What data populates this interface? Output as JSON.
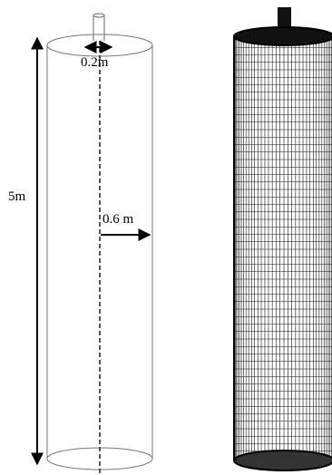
{
  "figure": {
    "colors": {
      "ink": "#000000",
      "outline": "#666666",
      "mesh": "#111111",
      "background": "#ffffff"
    },
    "left_panel": {
      "labels": {
        "height": "5m",
        "inlet_diameter": "0.2m",
        "radius": "0.6 m"
      }
    },
    "right_panel": {
      "grid": {
        "vertical_lines": 40,
        "horizontal_lines": 56
      }
    }
  }
}
